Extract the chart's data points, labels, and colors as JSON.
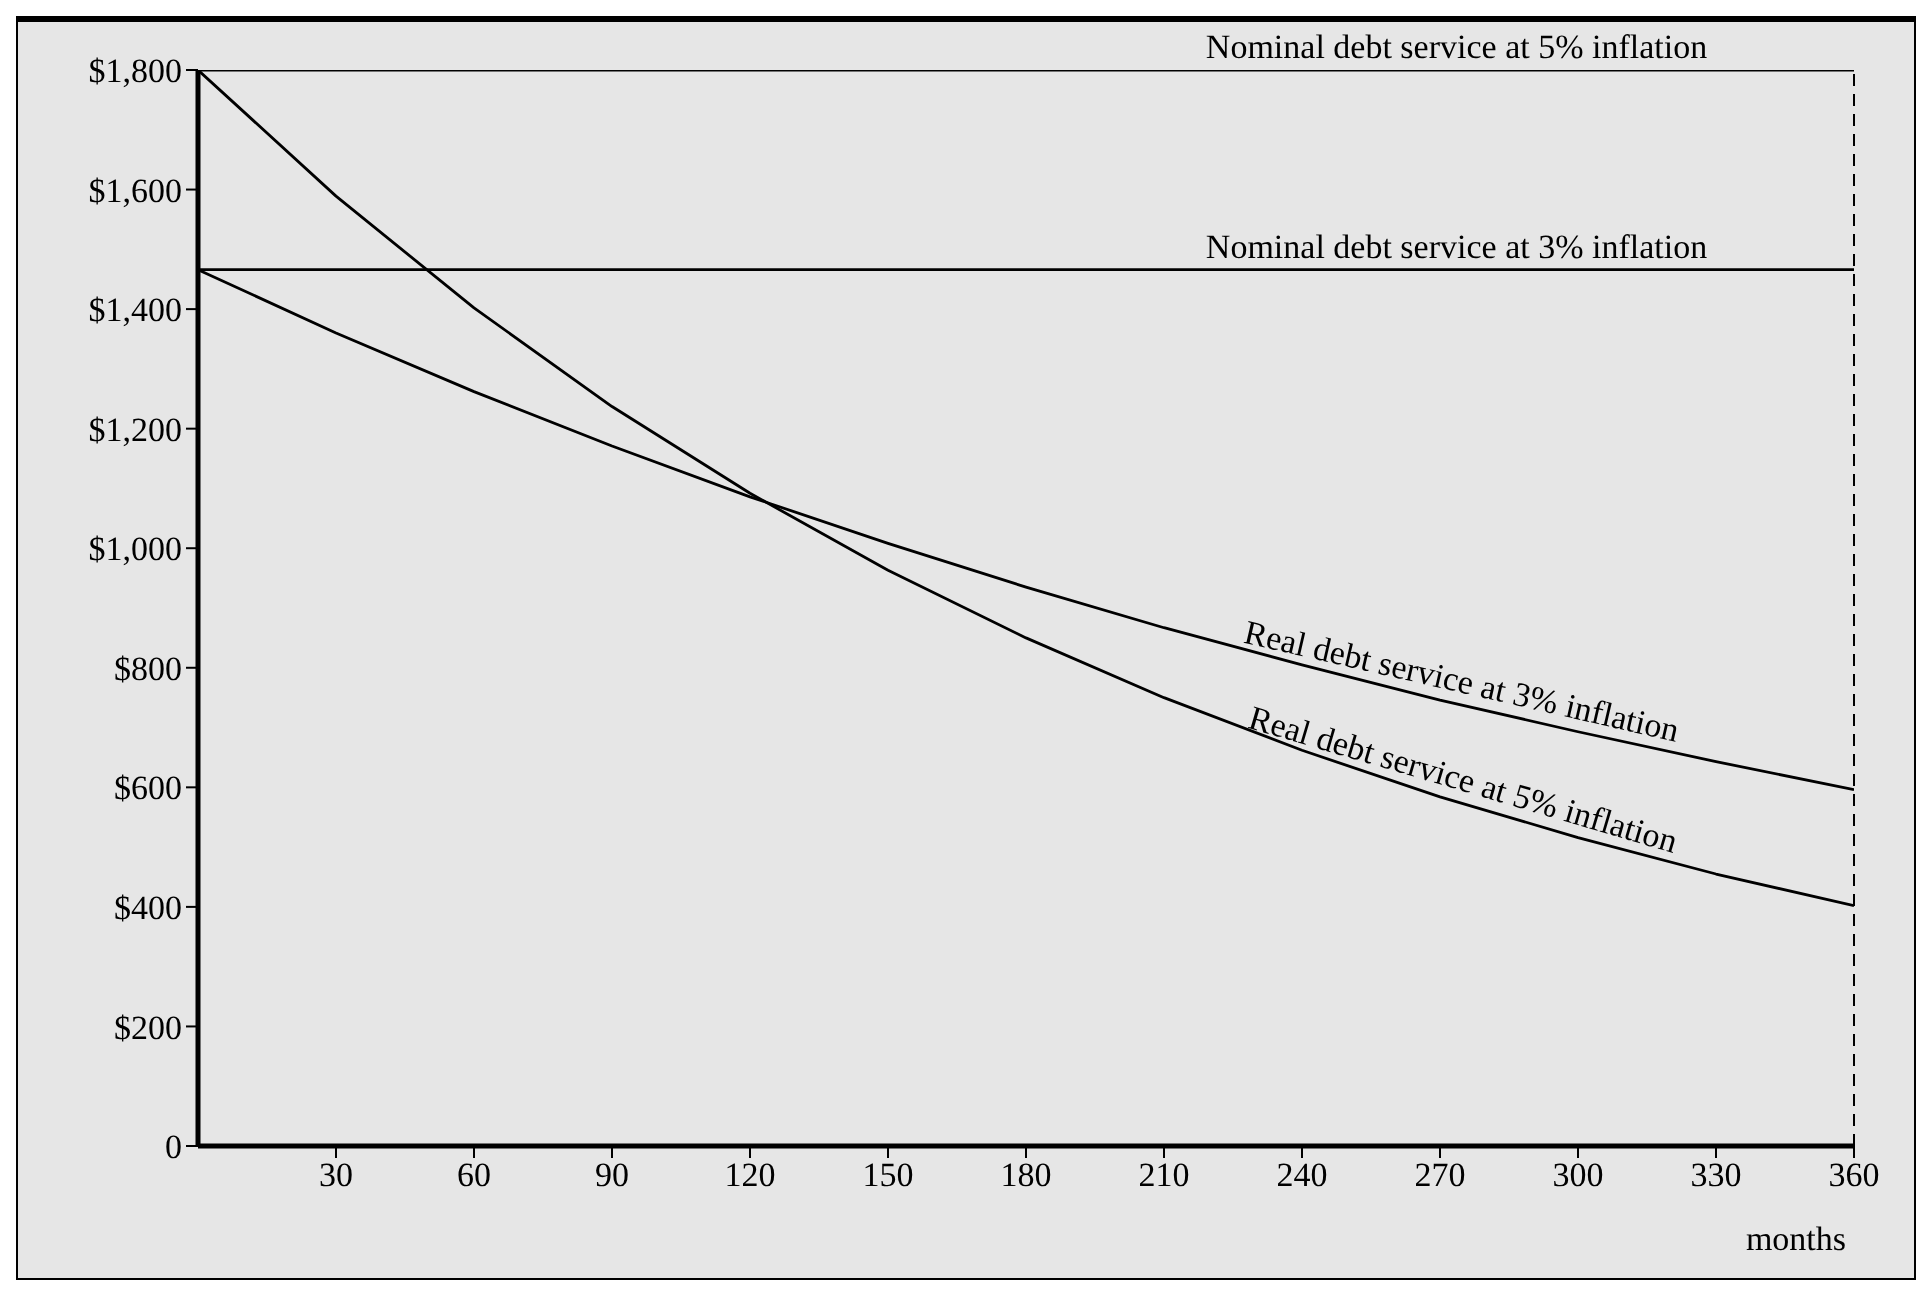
{
  "chart_data": {
    "type": "line",
    "xlabel": "months",
    "xlim": [
      0,
      360
    ],
    "xticks": [
      30,
      60,
      90,
      120,
      150,
      180,
      210,
      240,
      270,
      300,
      330,
      360
    ],
    "ylim": [
      0,
      1800
    ],
    "yticks": [
      {
        "value": 0,
        "label": "0"
      },
      {
        "value": 200,
        "label": "$200"
      },
      {
        "value": 400,
        "label": "$400"
      },
      {
        "value": 600,
        "label": "$600"
      },
      {
        "value": 800,
        "label": "$800"
      },
      {
        "value": 1000,
        "label": "$1,000"
      },
      {
        "value": 1200,
        "label": "$1,200"
      },
      {
        "value": 1400,
        "label": "$1,400"
      },
      {
        "value": 1600,
        "label": "$1,600"
      },
      {
        "value": 1800,
        "label": "$1,800"
      }
    ],
    "grid": false,
    "marker": "none",
    "line_style": "solid",
    "ref_lines": [
      {
        "axis": "x",
        "value": 360,
        "line_style": "dashed",
        "color": "#000000"
      }
    ],
    "series": [
      {
        "name": "Nominal debt service at 5% inflation",
        "color": "#000000",
        "x": [
          0,
          360
        ],
        "values": [
          1800,
          1800
        ]
      },
      {
        "name": "Nominal debt service at 3% inflation",
        "color": "#000000",
        "x": [
          0,
          360
        ],
        "values": [
          1466,
          1466
        ]
      },
      {
        "name": "Real debt service at 3% inflation",
        "color": "#000000",
        "x": [
          0,
          30,
          60,
          90,
          120,
          150,
          180,
          210,
          240,
          270,
          300,
          330,
          360
        ],
        "values": [
          1466,
          1360,
          1262,
          1171,
          1086,
          1008,
          935,
          867,
          805,
          746,
          693,
          643,
          596
        ]
      },
      {
        "name": "Real debt service at 5% inflation",
        "color": "#000000",
        "x": [
          0,
          30,
          60,
          90,
          120,
          150,
          180,
          210,
          240,
          270,
          300,
          330,
          360
        ],
        "values": [
          1800,
          1589,
          1402,
          1237,
          1092,
          963,
          850,
          750,
          662,
          584,
          516,
          455,
          402
        ]
      }
    ]
  }
}
